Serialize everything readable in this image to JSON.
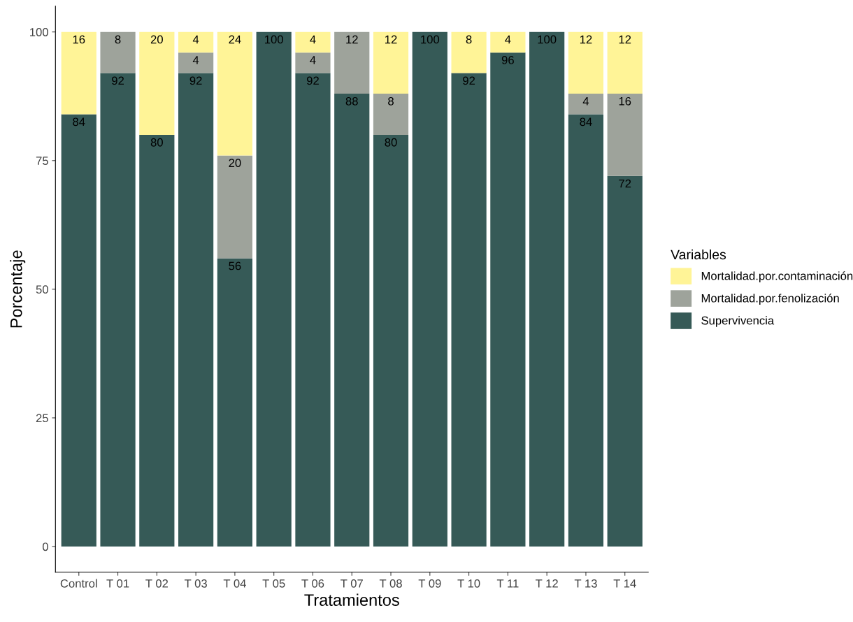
{
  "chart_data": {
    "type": "bar",
    "stacked": true,
    "xlabel": "Tratamientos",
    "ylabel": "Porcentaje",
    "legend_title": "Variables",
    "legend": "right",
    "categories": [
      "Control",
      "T 01",
      "T 02",
      "T 03",
      "T 04",
      "T 05",
      "T 06",
      "T 07",
      "T 08",
      "T 09",
      "T 10",
      "T 11",
      "T 12",
      "T 13",
      "T 14"
    ],
    "series": [
      {
        "name": "Supervivencia",
        "color": "#365a57",
        "values": [
          84,
          92,
          80,
          92,
          56,
          100,
          92,
          88,
          80,
          100,
          92,
          96,
          100,
          84,
          72
        ],
        "value_labels": [
          "84",
          "92",
          "80",
          "92",
          "56",
          "100",
          "92",
          "88",
          "80",
          "100",
          "92",
          "96",
          "100",
          "84",
          "72"
        ]
      },
      {
        "name": "Mortalidad.por.fenolización",
        "color": "#9ea39b",
        "values": [
          0,
          8,
          0,
          4,
          20,
          0,
          4,
          12,
          8,
          0,
          0,
          0,
          0,
          4,
          16
        ],
        "value_labels": [
          null,
          "8",
          null,
          "4",
          "20",
          null,
          "4",
          "12",
          "8",
          null,
          null,
          null,
          null,
          "4",
          "16"
        ]
      },
      {
        "name": "Mortalidad.por.contaminación",
        "color": "#fff497",
        "values": [
          16,
          0,
          20,
          4,
          24,
          0,
          4,
          0,
          12,
          0,
          8,
          4,
          0,
          12,
          12
        ],
        "value_labels": [
          "16",
          null,
          "20",
          "4",
          "24",
          null,
          "4",
          null,
          "12",
          null,
          "8",
          "4",
          null,
          "12",
          "12"
        ]
      }
    ],
    "ylim": [
      -5,
      105
    ],
    "yticks": [
      0,
      25,
      50,
      75,
      100
    ],
    "grid": false
  }
}
